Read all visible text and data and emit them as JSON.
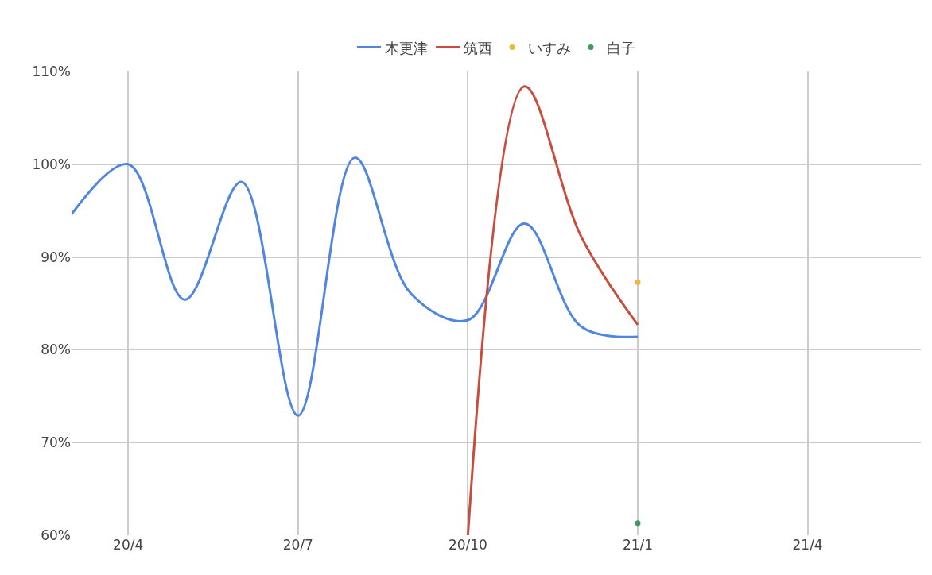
{
  "chart_data": {
    "type": "line",
    "categories": [
      null,
      "20/4",
      null,
      null,
      "20/7",
      null,
      null,
      "20/10",
      null,
      null,
      "21/1",
      null,
      null,
      "21/4",
      null,
      null
    ],
    "ylim": [
      60,
      110
    ],
    "yticks": [
      {
        "value": 60,
        "label": "60%"
      },
      {
        "value": 70,
        "label": "70%"
      },
      {
        "value": 80,
        "label": "80%"
      },
      {
        "value": 90,
        "label": "90%"
      },
      {
        "value": 100,
        "label": "100%"
      },
      {
        "value": 110,
        "label": "110%"
      }
    ],
    "grid": true,
    "legend": "top",
    "series": [
      {
        "name": "木更津",
        "color": "#5086e0",
        "values": [
          94.6,
          100,
          85.4,
          98.1,
          72.9,
          100.7,
          86,
          83.2,
          93.6,
          82.5,
          81.4,
          null,
          null,
          null,
          null,
          null
        ]
      },
      {
        "name": "筑西",
        "color": "#c94c3c",
        "values": [
          null,
          null,
          null,
          null,
          null,
          null,
          null,
          60,
          108.4,
          92.2,
          82.7,
          null,
          null,
          null,
          null,
          null
        ]
      },
      {
        "name": "いすみ",
        "color": "#f0b733",
        "type": "scatter",
        "marker": "circle",
        "values": [
          null,
          null,
          null,
          null,
          null,
          null,
          null,
          null,
          null,
          null,
          87.3,
          null,
          null,
          null,
          null,
          null
        ]
      },
      {
        "name": "白子",
        "color": "#3f9a5b",
        "type": "scatter",
        "marker": "circle",
        "values": [
          null,
          null,
          null,
          null,
          null,
          null,
          null,
          null,
          null,
          null,
          61.3,
          null,
          null,
          null,
          null,
          null
        ]
      }
    ]
  }
}
